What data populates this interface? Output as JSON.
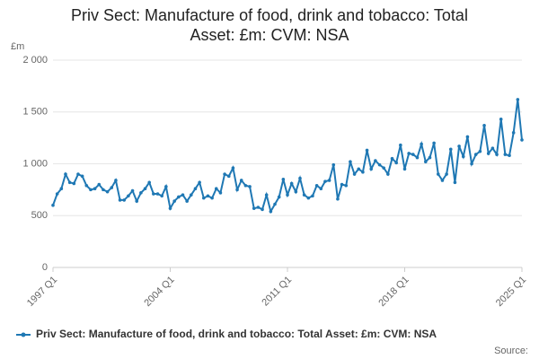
{
  "chart_data": {
    "type": "line",
    "title": "Priv Sect: Manufacture of food, drink and tobacco: Total Asset: £m: CVM: NSA",
    "y_unit": "£m",
    "source": "Source:",
    "categories": [
      "1997 Q1",
      null,
      null,
      null,
      null,
      null,
      null,
      null,
      null,
      null,
      null,
      null,
      null,
      null,
      null,
      null,
      null,
      null,
      null,
      null,
      null,
      null,
      null,
      null,
      null,
      null,
      null,
      null,
      "2004 Q1",
      null,
      null,
      null,
      null,
      null,
      null,
      null,
      null,
      null,
      null,
      null,
      null,
      null,
      null,
      null,
      null,
      null,
      null,
      null,
      null,
      null,
      null,
      null,
      null,
      null,
      null,
      null,
      "2011 Q1",
      null,
      null,
      null,
      null,
      null,
      null,
      null,
      null,
      null,
      null,
      null,
      null,
      null,
      null,
      null,
      null,
      null,
      null,
      null,
      null,
      null,
      null,
      null,
      null,
      null,
      null,
      null,
      "2018 Q1",
      null,
      null,
      null,
      null,
      null,
      null,
      null,
      null,
      null,
      null,
      null,
      null,
      null,
      null,
      null,
      null,
      null,
      null,
      null,
      null,
      null,
      null,
      null,
      null,
      null,
      null,
      null,
      "2025 Q1"
    ],
    "series": [
      {
        "name": "Priv Sect: Manufacture of food, drink and tobacco: Total Asset: £m: CVM: NSA",
        "color": "#1f78b4",
        "values": [
          600,
          710,
          760,
          900,
          820,
          810,
          900,
          880,
          790,
          750,
          760,
          800,
          750,
          730,
          770,
          840,
          650,
          650,
          690,
          740,
          640,
          720,
          760,
          820,
          710,
          710,
          690,
          780,
          570,
          640,
          680,
          700,
          640,
          700,
          760,
          820,
          670,
          690,
          670,
          760,
          720,
          900,
          880,
          960,
          750,
          840,
          790,
          780,
          570,
          580,
          560,
          700,
          540,
          610,
          680,
          850,
          700,
          810,
          730,
          860,
          700,
          670,
          690,
          790,
          760,
          830,
          840,
          990,
          660,
          800,
          790,
          1020,
          900,
          950,
          920,
          1130,
          950,
          1030,
          990,
          960,
          900,
          1050,
          1010,
          1180,
          950,
          1100,
          1090,
          1060,
          1190,
          1020,
          1060,
          1200,
          900,
          840,
          900,
          1140,
          820,
          1170,
          1070,
          1260,
          1000,
          1090,
          1120,
          1370,
          1100,
          1150,
          1090,
          1430,
          1090,
          1080,
          1300,
          1620,
          1230
        ]
      }
    ],
    "ylim": [
      0,
      2000
    ],
    "yticks": [
      0,
      500,
      {
        "value": 1000,
        "label": "1 000"
      },
      {
        "value": 1500,
        "label": "1 500"
      },
      {
        "value": 2000,
        "label": "2 000"
      }
    ],
    "grid": true,
    "legend": "bottom"
  }
}
